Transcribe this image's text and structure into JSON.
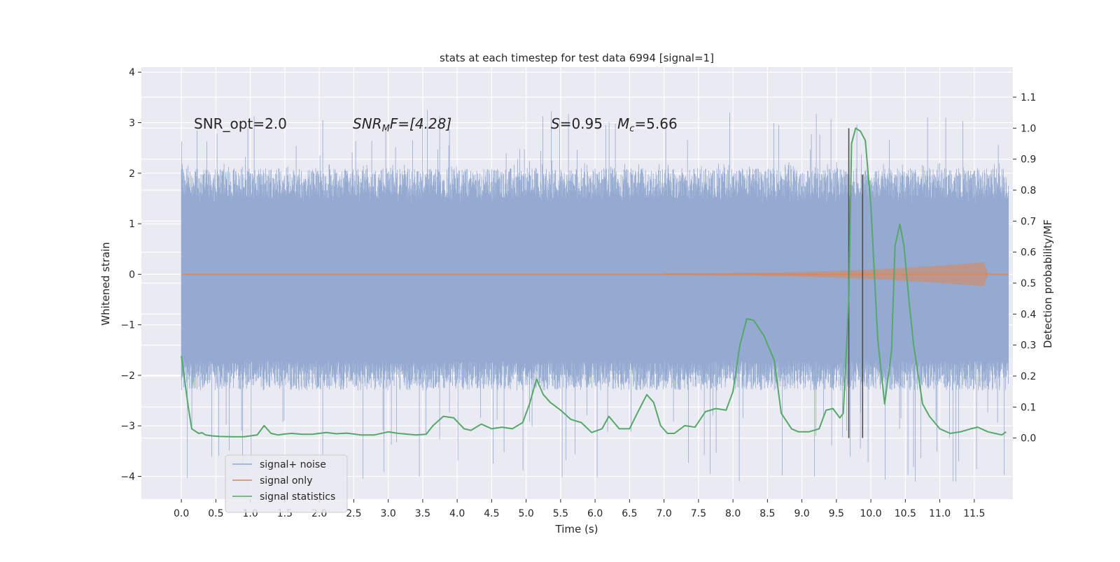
{
  "chart_data": {
    "type": "line",
    "title": "stats at each timestep for test data 6994 [signal=1]",
    "xlabel": "Time (s)",
    "ylabel": "Whitened strain",
    "y2label": "Detection probability/MF",
    "xlim": [
      -0.58,
      12.06
    ],
    "ylim": [
      -4.45,
      4.1
    ],
    "y2lim": [
      -0.197,
      1.197
    ],
    "x_ticks": [
      0.0,
      0.5,
      1.0,
      1.5,
      2.0,
      2.5,
      3.0,
      3.5,
      4.0,
      4.5,
      5.0,
      5.5,
      6.0,
      6.5,
      7.0,
      7.5,
      8.0,
      8.5,
      9.0,
      9.5,
      10.0,
      10.5,
      11.0,
      11.5
    ],
    "x_tick_labels": [
      "0.0",
      "0.5",
      "1.0",
      "1.5",
      "2.0",
      "2.5",
      "3.0",
      "3.5",
      "4.0",
      "4.5",
      "5.0",
      "5.5",
      "6.0",
      "6.5",
      "7.0",
      "7.5",
      "8.0",
      "8.5",
      "9.0",
      "9.5",
      "10.0",
      "10.5",
      "11.0",
      "11.5"
    ],
    "y_ticks": [
      -4,
      -3,
      -2,
      -1,
      0,
      1,
      2,
      3,
      4
    ],
    "y_tick_labels": [
      "−4",
      "−3",
      "−2",
      "−1",
      "0",
      "1",
      "2",
      "3",
      "4"
    ],
    "y2_ticks": [
      0.0,
      0.1,
      0.2,
      0.3,
      0.4,
      0.5,
      0.6,
      0.7,
      0.8,
      0.9,
      1.0,
      1.1
    ],
    "y2_tick_labels": [
      "0.0",
      "0.1",
      "0.2",
      "0.3",
      "0.4",
      "0.5",
      "0.6",
      "0.7",
      "0.8",
      "0.9",
      "1.0",
      "1.1"
    ],
    "grid": true,
    "legend_position": "lower-left",
    "colors": {
      "background": "#eaeaf2",
      "grid": "#ffffff",
      "signal_noise": "#8fa6cf",
      "signal_only": "#dd8452",
      "statistics": "#55a868",
      "marker_lines": "#4d4d4d"
    },
    "annotations": {
      "snr_opt": "SNR_opt=2.0",
      "snr_mf_base": "SNR",
      "snr_mf_sub": "M",
      "snr_mf_rest": "F=[4.28]",
      "s_var": "S",
      "s_value": "=0.95",
      "mc_var": "M",
      "mc_sub": "c",
      "mc_value": "=5.66"
    },
    "series": [
      {
        "name": "signal+ noise",
        "kind": "noise_band",
        "x_range": [
          0.0,
          12.0
        ],
        "band_range": [
          -1.6,
          1.6
        ],
        "peak_range": [
          -4.1,
          3.7
        ]
      },
      {
        "name": "signal only",
        "kind": "chirp",
        "x_range": [
          0.0,
          12.0
        ],
        "chirp_start": 7.0,
        "chirp_peak_time": 11.65,
        "peak_amplitude": 0.22
      },
      {
        "name": "signal statistics",
        "kind": "line",
        "axis": "right",
        "x": [
          0.0,
          0.1,
          0.15,
          0.25,
          0.3,
          0.35,
          0.45,
          0.55,
          0.75,
          0.9,
          1.1,
          1.2,
          1.3,
          1.4,
          1.5,
          1.6,
          1.75,
          1.9,
          2.1,
          2.25,
          2.4,
          2.6,
          2.8,
          3.0,
          3.15,
          3.4,
          3.55,
          3.65,
          3.8,
          3.95,
          4.1,
          4.2,
          4.35,
          4.5,
          4.65,
          4.8,
          4.95,
          5.05,
          5.15,
          5.25,
          5.35,
          5.5,
          5.65,
          5.8,
          5.95,
          6.1,
          6.2,
          6.35,
          6.5,
          6.6,
          6.75,
          6.85,
          6.95,
          7.05,
          7.15,
          7.3,
          7.45,
          7.6,
          7.75,
          7.9,
          8.0,
          8.1,
          8.2,
          8.3,
          8.45,
          8.6,
          8.7,
          8.85,
          8.95,
          9.1,
          9.25,
          9.35,
          9.45,
          9.55,
          9.6,
          9.68,
          9.72,
          9.78,
          9.85,
          9.92,
          10.0,
          10.1,
          10.2,
          10.3,
          10.35,
          10.42,
          10.48,
          10.55,
          10.62,
          10.75,
          10.85,
          11.0,
          11.15,
          11.3,
          11.45,
          11.55,
          11.6,
          11.7,
          11.8,
          11.9,
          11.96
        ],
        "y": [
          0.265,
          0.1,
          0.03,
          0.015,
          0.017,
          0.01,
          0.007,
          0.005,
          0.004,
          0.004,
          0.01,
          0.04,
          0.015,
          0.01,
          0.013,
          0.015,
          0.012,
          0.012,
          0.018,
          0.014,
          0.016,
          0.01,
          0.01,
          0.02,
          0.015,
          0.01,
          0.012,
          0.04,
          0.07,
          0.065,
          0.03,
          0.025,
          0.045,
          0.03,
          0.035,
          0.03,
          0.05,
          0.11,
          0.19,
          0.14,
          0.115,
          0.09,
          0.06,
          0.05,
          0.018,
          0.03,
          0.07,
          0.03,
          0.03,
          0.075,
          0.14,
          0.115,
          0.04,
          0.015,
          0.015,
          0.04,
          0.035,
          0.085,
          0.095,
          0.09,
          0.15,
          0.3,
          0.385,
          0.38,
          0.33,
          0.25,
          0.08,
          0.03,
          0.02,
          0.02,
          0.03,
          0.09,
          0.095,
          0.065,
          0.08,
          0.45,
          0.95,
          1.0,
          0.99,
          0.96,
          0.75,
          0.32,
          0.11,
          0.28,
          0.62,
          0.69,
          0.62,
          0.45,
          0.3,
          0.11,
          0.07,
          0.03,
          0.015,
          0.02,
          0.03,
          0.035,
          0.03,
          0.02,
          0.015,
          0.01,
          0.02
        ]
      }
    ],
    "vlines": [
      9.68,
      9.88
    ],
    "vline_ranges": [
      [
        -0.0,
        1.0
      ],
      [
        -0.0,
        0.85
      ]
    ],
    "legend": [
      "signal+ noise",
      "signal only",
      "signal statistics"
    ]
  }
}
